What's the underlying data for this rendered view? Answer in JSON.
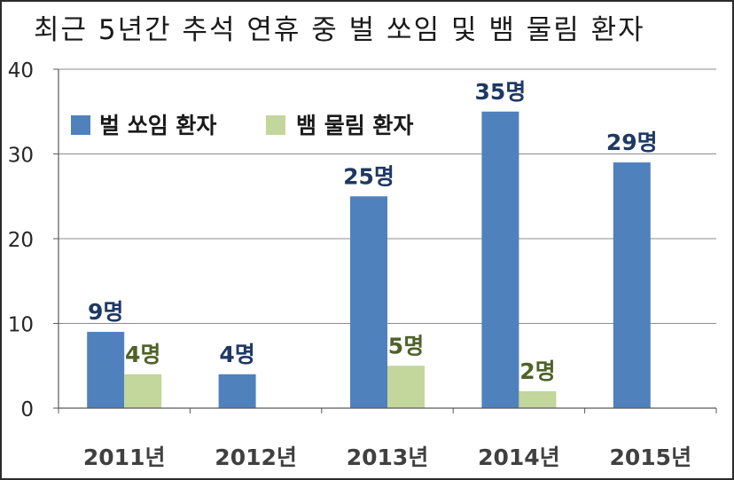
{
  "chart_data": {
    "type": "bar",
    "title": "최근 5년간 추석 연휴 중 벌 쏘임 및 뱀 물림 환자",
    "categories": [
      "2011년",
      "2012년",
      "2013년",
      "2014년",
      "2015년"
    ],
    "series": [
      {
        "name": "벌 쏘임 환자",
        "color": "#4F81BD",
        "label_color": "#1F3864",
        "values": [
          9,
          4,
          25,
          35,
          29
        ],
        "data_labels": [
          "9명",
          "4명",
          "25명",
          "35명",
          "29명"
        ]
      },
      {
        "name": "뱀 물림 환자",
        "color": "#C3D69B",
        "label_color": "#4F6228",
        "values": [
          4,
          null,
          5,
          2,
          null
        ],
        "data_labels": [
          "4명",
          "",
          "5명",
          "2명",
          ""
        ]
      }
    ],
    "y_ticks": [
      "0",
      "10",
      "20",
      "30",
      "40"
    ],
    "ylim": [
      0,
      40
    ],
    "grid": true,
    "legend_position": "top-left"
  }
}
